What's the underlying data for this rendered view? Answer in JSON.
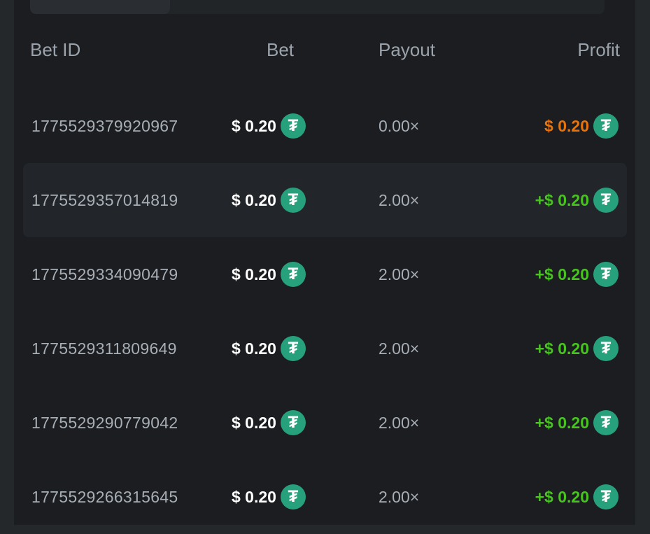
{
  "colors": {
    "loss": "#e8740c",
    "win": "#47c41e",
    "coin": "#26a17b"
  },
  "header": {
    "bet_id": "Bet ID",
    "bet": "Bet",
    "payout": "Payout",
    "profit": "Profit"
  },
  "coin_icon": "tether-usdt-icon",
  "rows": [
    {
      "id": "1775529379920967",
      "bet": "$ 0.20",
      "payout": "0.00×",
      "profit": "$ 0.20",
      "result": "loss"
    },
    {
      "id": "1775529357014819",
      "bet": "$ 0.20",
      "payout": "2.00×",
      "profit": "+$ 0.20",
      "result": "win"
    },
    {
      "id": "1775529334090479",
      "bet": "$ 0.20",
      "payout": "2.00×",
      "profit": "+$ 0.20",
      "result": "win"
    },
    {
      "id": "1775529311809649",
      "bet": "$ 0.20",
      "payout": "2.00×",
      "profit": "+$ 0.20",
      "result": "win"
    },
    {
      "id": "1775529290779042",
      "bet": "$ 0.20",
      "payout": "2.00×",
      "profit": "+$ 0.20",
      "result": "win"
    },
    {
      "id": "1775529266315645",
      "bet": "$ 0.20",
      "payout": "2.00×",
      "profit": "+$ 0.20",
      "result": "win"
    }
  ]
}
